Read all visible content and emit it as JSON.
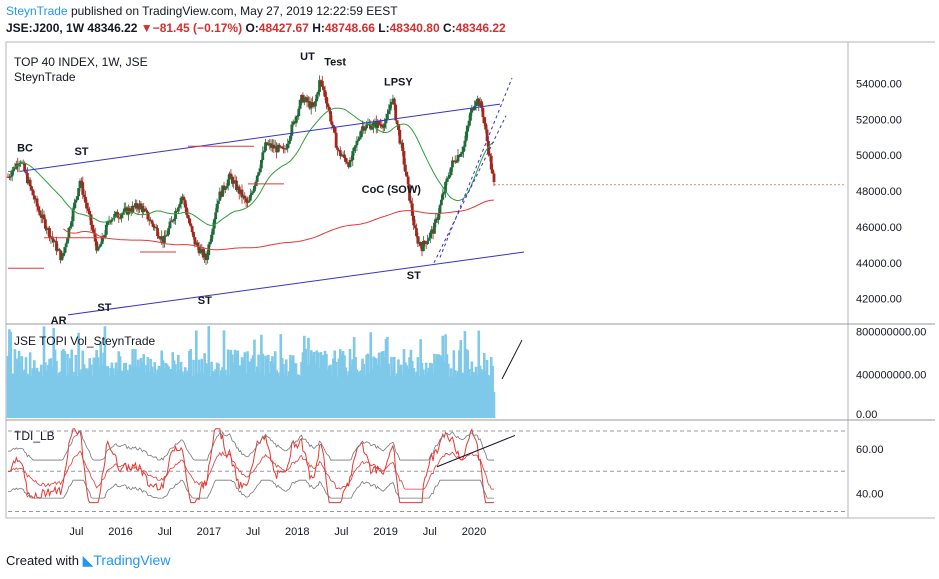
{
  "header": {
    "user": "SteynTrade",
    "published_text": "published on TradingView.com, May 27, 2019 12:22:59 EEST",
    "symbol": "JSE:J200, 1W",
    "last": "48346.22",
    "change_arrow": "▼",
    "change": "−81.45 (−0.17%)",
    "o_label": "O:",
    "o": "48427.67",
    "h_label": "H:",
    "h": "48748.66",
    "l_label": "L:",
    "l": "48340.80",
    "c_label": "C:",
    "c": "48346.22"
  },
  "footer": {
    "created_with": "Created with",
    "brand": "TradingView"
  },
  "colors": {
    "up": "#1f6b3a",
    "down": "#a0281e",
    "volume": "#7ec8e9",
    "ma_green": "#2e9e3a",
    "ma_red": "#e53935",
    "trend": "#3333cc",
    "tdi_red": "#e53935",
    "tdi_grey": "#777777"
  },
  "chart_data": [
    {
      "type": "candlestick",
      "title": "TOP 40 INDEX, 1W, JSE",
      "subtitle": "SteynTrade",
      "ylim": [
        40700,
        56200
      ],
      "y_ticks": [
        "54000.00",
        "52000.00",
        "50000.00",
        "48000.00",
        "46000.00",
        "44000.00",
        "42000.00"
      ],
      "x_ticks": [
        "Jul",
        "2016",
        "Jul",
        "2017",
        "Jul",
        "2018",
        "Jul",
        "2019",
        "Jul",
        "2020"
      ],
      "last_price": 48346.22,
      "support_lines": [
        {
          "y": 45400,
          "from": "2016-01",
          "to": "2016-11"
        },
        {
          "y": 44600,
          "from": "2017-05",
          "to": "2017-11"
        },
        {
          "y": 50500,
          "from": "2018-01",
          "to": "2018-12"
        },
        {
          "y": 48400,
          "from": "2018-11",
          "to": "2019-05"
        }
      ],
      "annotations": [
        "BC",
        "ST",
        "AR",
        "ST",
        "ST",
        "UT",
        "Test",
        "LPSY",
        "CoC (SOW)",
        "ST"
      ]
    },
    {
      "type": "bar",
      "title": "JSE TOPI Vol_SteynTrade",
      "ylim": [
        0,
        850000000
      ],
      "y_ticks": [
        "800000000.00",
        "400000000.00",
        "0.00"
      ]
    },
    {
      "type": "line",
      "title": "TDI_LB",
      "ylim": [
        30,
        72
      ],
      "y_ticks": [
        "60.00",
        "40.00"
      ],
      "levels": [
        32,
        50,
        68
      ]
    }
  ]
}
